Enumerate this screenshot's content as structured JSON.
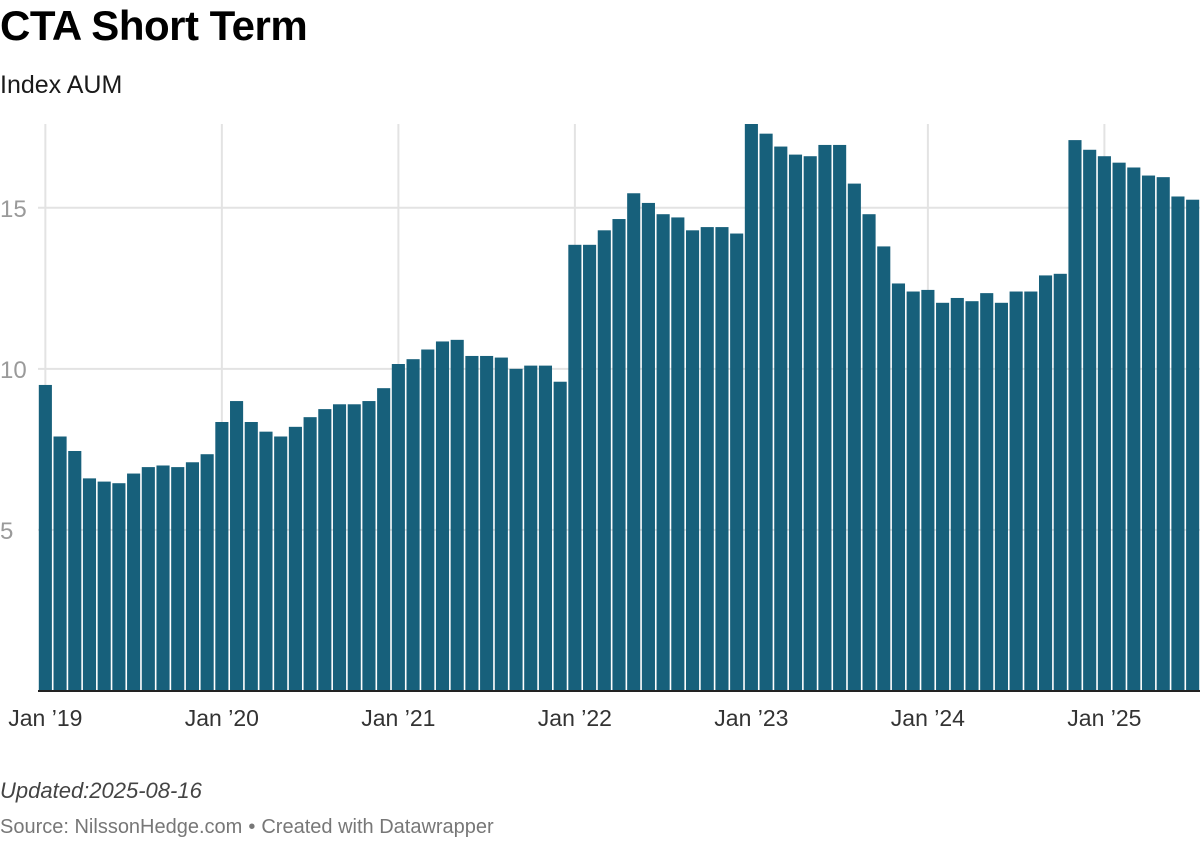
{
  "title": "CTA Short Term",
  "subtitle": "Index AUM",
  "notes": "Updated:2025-08-16",
  "source": {
    "label": "Source: NilssonHedge.com",
    "separator": "•",
    "credit": "Created with Datawrapper"
  },
  "colors": {
    "bar": "#17607b",
    "grid": "#e3e3e3",
    "axis": "#222222",
    "tick_label": "#9a9a9a",
    "x_label": "#333333"
  },
  "chart_data": {
    "type": "bar",
    "x_start": "2019-01",
    "frequency": "monthly",
    "x_ticks": [
      {
        "date": "2019-01",
        "label": "Jan ’19"
      },
      {
        "date": "2020-01",
        "label": "Jan ’20"
      },
      {
        "date": "2021-01",
        "label": "Jan ’21"
      },
      {
        "date": "2022-01",
        "label": "Jan ’22"
      },
      {
        "date": "2023-01",
        "label": "Jan ’23"
      },
      {
        "date": "2024-01",
        "label": "Jan ’24"
      },
      {
        "date": "2025-01",
        "label": "Jan ’25"
      }
    ],
    "y_ticks": [
      5,
      10,
      15
    ],
    "ylim": [
      0,
      17.6
    ],
    "grid": true,
    "values": [
      9.5,
      7.9,
      7.45,
      6.6,
      6.5,
      6.45,
      6.75,
      6.95,
      7.0,
      6.95,
      7.1,
      7.35,
      8.35,
      9.0,
      8.35,
      8.05,
      7.9,
      8.2,
      8.5,
      8.75,
      8.9,
      8.9,
      9.0,
      9.4,
      10.15,
      10.3,
      10.6,
      10.85,
      10.9,
      10.4,
      10.4,
      10.35,
      10.0,
      10.1,
      10.1,
      9.6,
      13.85,
      13.85,
      14.3,
      14.65,
      15.45,
      15.15,
      14.8,
      14.7,
      14.3,
      14.4,
      14.4,
      14.2,
      17.6,
      17.3,
      16.9,
      16.65,
      16.6,
      16.95,
      16.95,
      15.75,
      14.8,
      13.8,
      12.65,
      12.4,
      12.45,
      12.05,
      12.2,
      12.1,
      12.35,
      12.05,
      12.4,
      12.4,
      12.9,
      12.95,
      17.1,
      16.8,
      16.6,
      16.4,
      16.25,
      16.0,
      15.95,
      15.35,
      15.25
    ]
  }
}
